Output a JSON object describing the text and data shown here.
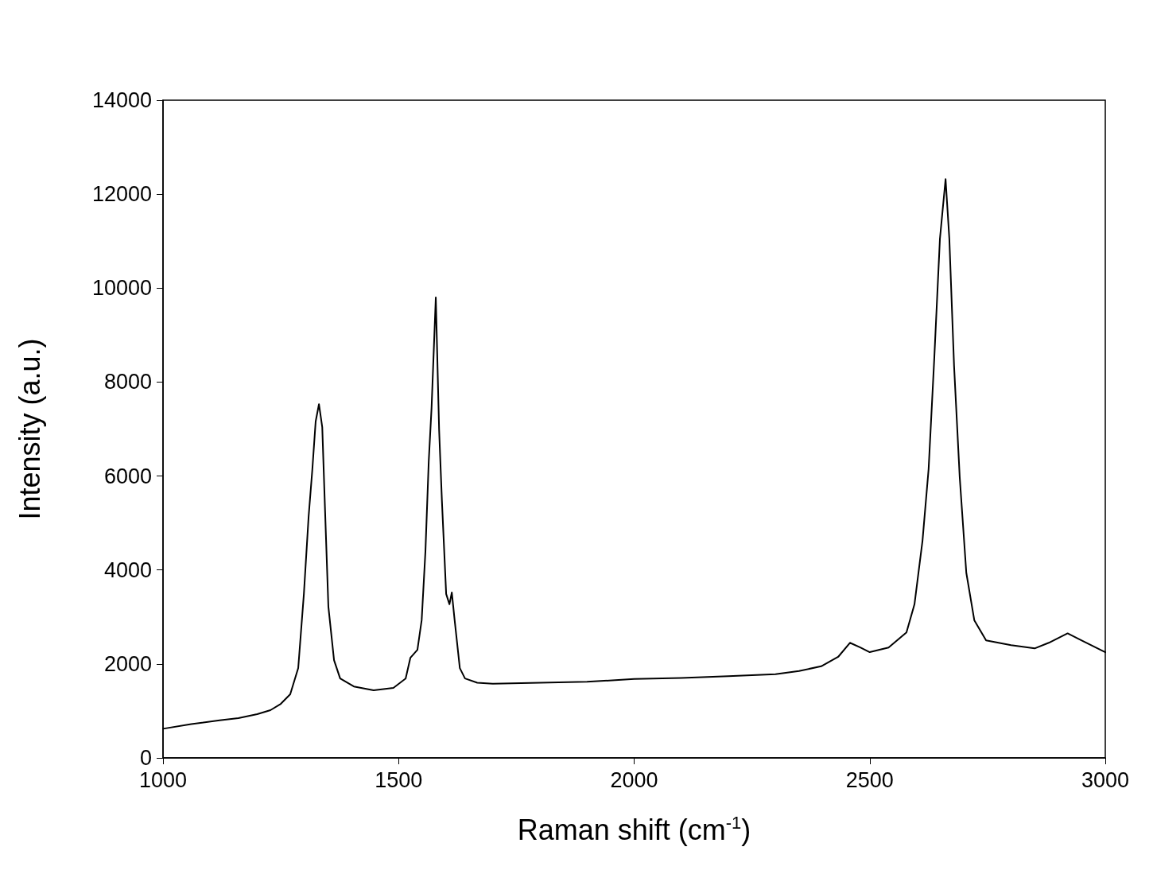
{
  "chart_data": {
    "type": "line",
    "xlabel": "Raman shift (cm$^{-1}$)",
    "ylabel": "Intensity (a.u.)",
    "xlim": [
      1000,
      3000
    ],
    "xticks": [
      1000,
      1500,
      2000,
      2500,
      3000
    ],
    "ylim": [
      0,
      14000
    ],
    "yticks": [
      0,
      2000,
      4000,
      6000,
      8000,
      10000,
      12000,
      14000
    ],
    "grid": false,
    "marker": "none",
    "line_style": "solid",
    "series": [
      {
        "color": "#000000",
        "x": [
          1000,
          1060,
          1120,
          1160,
          1200,
          1228,
          1250,
          1270,
          1287,
          1299,
          1309,
          1317,
          1324,
          1331,
          1338,
          1344,
          1351,
          1363,
          1376,
          1405,
          1447,
          1489,
          1515,
          1525,
          1540,
          1549,
          1557,
          1564,
          1570,
          1579,
          1586,
          1592,
          1601,
          1608,
          1613,
          1619,
          1630,
          1641,
          1667,
          1700,
          1800,
          1900,
          2000,
          2100,
          2200,
          2300,
          2350,
          2397,
          2433,
          2458,
          2480,
          2500,
          2540,
          2578,
          2595,
          2612,
          2625,
          2637,
          2649,
          2661,
          2669,
          2679,
          2691,
          2705,
          2722,
          2747,
          2800,
          2850,
          2880,
          2920,
          2950,
          3000
        ],
        "values": [
          620,
          720,
          800,
          846,
          930,
          1016,
          1150,
          1354,
          1913,
          3490,
          5130,
          6145,
          7160,
          7530,
          7040,
          5250,
          3220,
          2080,
          1690,
          1520,
          1440,
          1490,
          1690,
          2130,
          2300,
          2930,
          4400,
          6310,
          7450,
          9800,
          6990,
          5470,
          3490,
          3270,
          3520,
          2930,
          1910,
          1690,
          1600,
          1580,
          1600,
          1620,
          1680,
          1700,
          1740,
          1780,
          1850,
          1950,
          2150,
          2450,
          2350,
          2250,
          2350,
          2670,
          3270,
          4620,
          6150,
          8500,
          11050,
          12320,
          11050,
          8350,
          5980,
          3940,
          2930,
          2500,
          2400,
          2330,
          2450,
          2650,
          2500,
          2250
        ]
      }
    ]
  }
}
